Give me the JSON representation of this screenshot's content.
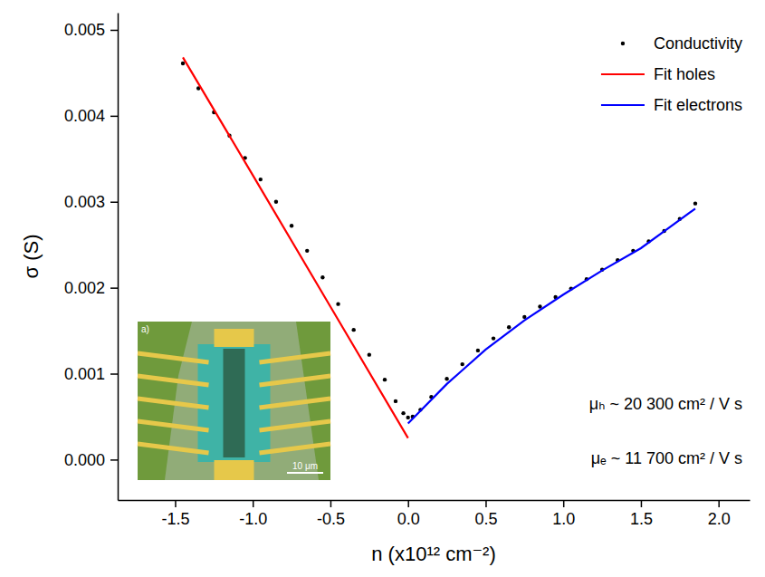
{
  "chart_data": {
    "type": "line",
    "x_label": "n (x10¹² cm⁻²)",
    "y_label": "σ (S)",
    "xlim": [
      -1.87,
      2.2
    ],
    "ylim": [
      -0.00047,
      0.0052
    ],
    "xticks": [
      -1.5,
      {
        "value": -1,
        "label": "-1.0"
      },
      -0.5,
      {
        "value": 0,
        "label": "0.0"
      },
      0.5,
      {
        "value": 1,
        "label": "1.0"
      },
      1.5,
      {
        "value": 2,
        "label": "2.0"
      }
    ],
    "yticks": [
      {
        "value": 0,
        "label": "0.000"
      },
      0.001,
      0.002,
      0.003,
      0.004,
      0.005
    ],
    "grid": false,
    "legend": "upper right",
    "series": [
      {
        "name": "Conductivity",
        "type": "scatter",
        "marker": "point",
        "color": "#000000",
        "x": [
          -1.45,
          -1.35,
          -1.25,
          -1.15,
          -1.05,
          -0.95,
          -0.85,
          -0.75,
          -0.65,
          -0.55,
          -0.45,
          -0.35,
          -0.25,
          -0.15,
          -0.08,
          -0.03,
          0.0,
          0.03,
          0.08,
          0.15,
          0.25,
          0.35,
          0.45,
          0.55,
          0.65,
          0.75,
          0.85,
          0.95,
          1.05,
          1.15,
          1.25,
          1.35,
          1.45,
          1.55,
          1.65,
          1.75,
          1.85
        ],
        "values": [
          0.00461,
          0.00432,
          0.00404,
          0.00377,
          0.00351,
          0.00326,
          0.003,
          0.00272,
          0.00243,
          0.00212,
          0.00181,
          0.00151,
          0.00122,
          0.00093,
          0.00068,
          0.00054,
          0.00049,
          0.0005,
          0.00058,
          0.00073,
          0.00094,
          0.00111,
          0.00127,
          0.00141,
          0.00154,
          0.00166,
          0.00178,
          0.00189,
          0.00199,
          0.0021,
          0.00221,
          0.00232,
          0.00243,
          0.00254,
          0.00266,
          0.0028,
          0.00298
        ]
      },
      {
        "name": "Fit holes",
        "type": "line",
        "line_style": "solid",
        "color": "#ff0000",
        "x": [
          -1.45,
          -1.0,
          -0.5,
          0.0
        ],
        "values": [
          0.00468,
          0.00331,
          0.00178,
          0.00025
        ]
      },
      {
        "name": "Fit electrons",
        "type": "line",
        "line_style": "solid",
        "color": "#0000ff",
        "x": [
          0.0,
          0.25,
          0.5,
          0.75,
          1.0,
          1.25,
          1.5,
          1.85
        ],
        "values": [
          0.00042,
          0.00088,
          0.00128,
          0.00162,
          0.00192,
          0.0022,
          0.00246,
          0.00292
        ]
      }
    ],
    "annotations": [
      "μₕ ~ 20 300 cm² / V s",
      "μₑ ~ 11 700 cm² / V s"
    ],
    "inset": {
      "label": "a)",
      "scale_bar": "10 μm"
    }
  }
}
